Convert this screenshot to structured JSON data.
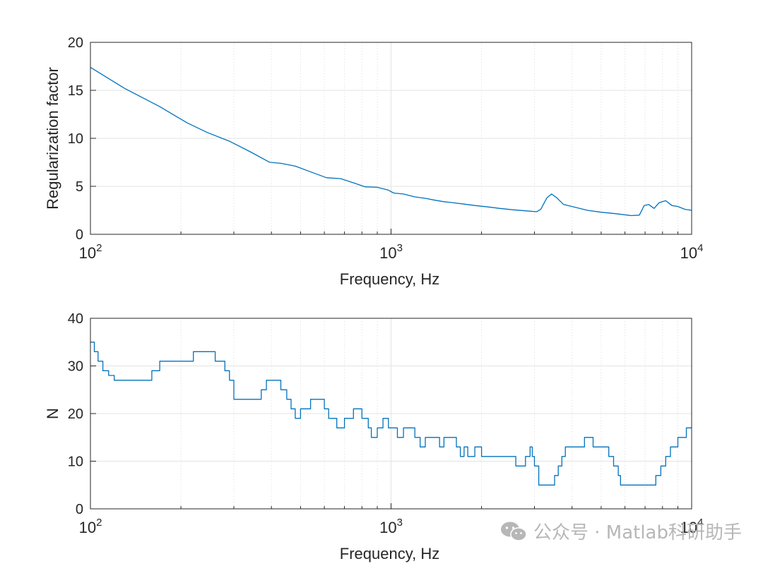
{
  "chart_data": [
    {
      "type": "line",
      "xscale": "log",
      "xlim": [
        100,
        10000
      ],
      "ylim": [
        0,
        20
      ],
      "xlabel": "Frequency, Hz",
      "ylabel": "Regularization factor",
      "xticks": [
        100,
        1000,
        10000
      ],
      "xtick_labels": [
        {
          "base": "10",
          "exp": "2"
        },
        {
          "base": "10",
          "exp": "3"
        },
        {
          "base": "10",
          "exp": "4"
        }
      ],
      "yticks": [
        0,
        5,
        10,
        15,
        20
      ],
      "grid": true,
      "color": "#0072BD",
      "step": false,
      "x": [
        100,
        130,
        170,
        210,
        245,
        290,
        340,
        395,
        430,
        480,
        530,
        610,
        680,
        760,
        820,
        900,
        980,
        1020,
        1100,
        1200,
        1300,
        1400,
        1500,
        1600,
        1750,
        1900,
        2100,
        2300,
        2550,
        2800,
        3050,
        3150,
        3300,
        3420,
        3560,
        3750,
        4000,
        4500,
        5000,
        5600,
        6300,
        6700,
        6950,
        7200,
        7500,
        7800,
        8200,
        8600,
        9000,
        9500,
        10000
      ],
      "y": [
        17.4,
        15.2,
        13.3,
        11.6,
        10.6,
        9.7,
        8.6,
        7.5,
        7.4,
        7.1,
        6.6,
        5.9,
        5.8,
        5.3,
        4.95,
        4.9,
        4.6,
        4.3,
        4.2,
        3.9,
        3.75,
        3.55,
        3.4,
        3.3,
        3.15,
        3.0,
        2.85,
        2.7,
        2.55,
        2.45,
        2.35,
        2.6,
        3.8,
        4.2,
        3.8,
        3.1,
        2.9,
        2.5,
        2.3,
        2.15,
        1.95,
        2.0,
        3.0,
        3.1,
        2.7,
        3.3,
        3.5,
        3.0,
        2.9,
        2.6,
        2.5
      ]
    },
    {
      "type": "line",
      "xscale": "log",
      "xlim": [
        100,
        10000
      ],
      "ylim": [
        0,
        40
      ],
      "xlabel": "Frequency, Hz",
      "ylabel": "N",
      "xticks": [
        100,
        1000,
        10000
      ],
      "xtick_labels": [
        {
          "base": "10",
          "exp": "2"
        },
        {
          "base": "10",
          "exp": "3"
        },
        {
          "base": "10",
          "exp": "4"
        }
      ],
      "yticks": [
        0,
        10,
        20,
        30,
        40
      ],
      "grid": true,
      "color": "#0072BD",
      "step": true,
      "x": [
        100,
        103,
        106,
        110,
        115,
        120,
        160,
        170,
        185,
        220,
        260,
        280,
        290,
        300,
        370,
        385,
        430,
        450,
        465,
        480,
        500,
        540,
        600,
        620,
        660,
        700,
        750,
        800,
        840,
        860,
        900,
        940,
        980,
        1050,
        1100,
        1200,
        1250,
        1300,
        1450,
        1500,
        1650,
        1700,
        1750,
        1800,
        1900,
        2000,
        2100,
        2250,
        2550,
        2600,
        2800,
        2900,
        2950,
        3000,
        3100,
        3500,
        3600,
        3700,
        3800,
        4400,
        4700,
        5300,
        5500,
        5700,
        5800,
        6000,
        7600,
        7900,
        8200,
        8500,
        9000,
        9600,
        10000
      ],
      "y": [
        35,
        33,
        31,
        29,
        28,
        27,
        29,
        31,
        31,
        33,
        31,
        29,
        27,
        23,
        25,
        27,
        25,
        23,
        21,
        19,
        21,
        23,
        21,
        19,
        17,
        19,
        21,
        19,
        17,
        15,
        17,
        19,
        17,
        15,
        17,
        15,
        13,
        15,
        13,
        15,
        13,
        11,
        13,
        11,
        13,
        11,
        11,
        11,
        11,
        9,
        11,
        13,
        11,
        9,
        5,
        7,
        9,
        11,
        13,
        15,
        13,
        11,
        9,
        7,
        5,
        5,
        7,
        9,
        11,
        13,
        15,
        17,
        17
      ]
    }
  ],
  "watermark": {
    "icon": "wechat-icon",
    "text": "公众号 · Matlab科研助手"
  }
}
